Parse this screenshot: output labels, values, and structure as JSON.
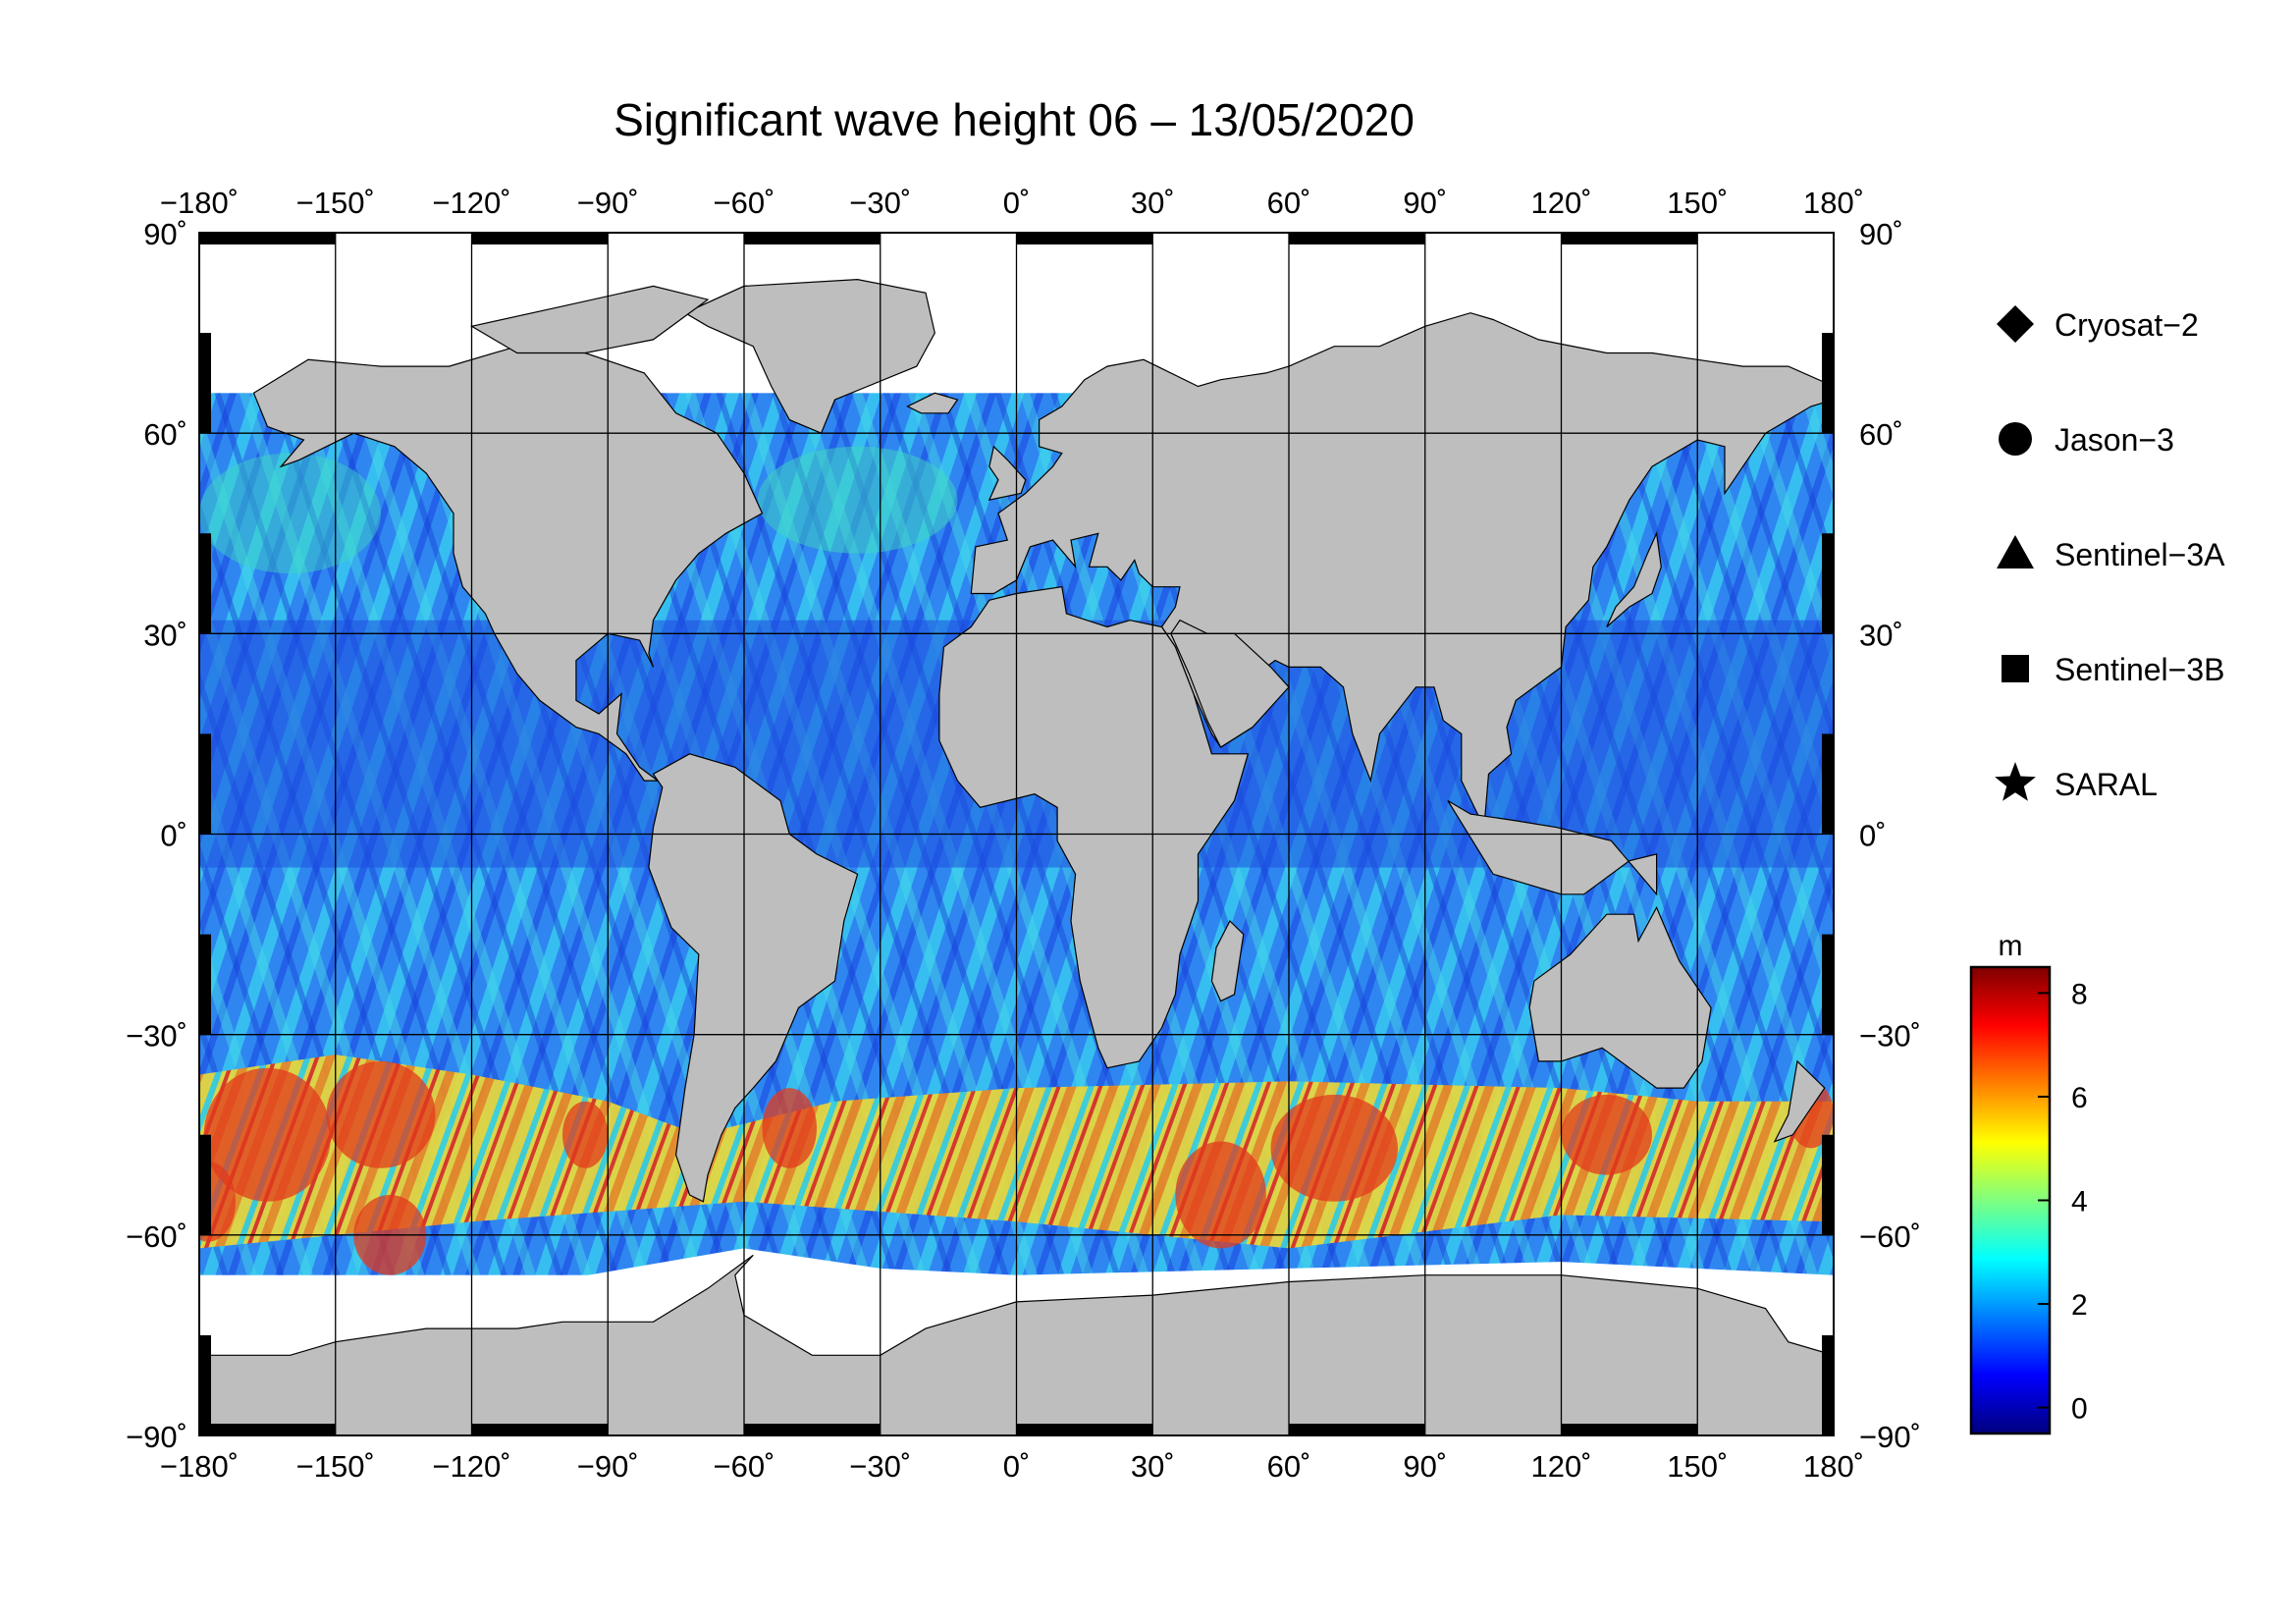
{
  "title": "Significant wave height 06 – 13/05/2020",
  "map": {
    "projection": "equirectangular",
    "lon_range": [
      -180,
      180
    ],
    "lat_range": [
      -90,
      90
    ],
    "gridlines": true,
    "lon_ticks": [
      {
        "value": -180,
        "label": "−180˚"
      },
      {
        "value": -150,
        "label": "−150˚"
      },
      {
        "value": -120,
        "label": "−120˚"
      },
      {
        "value": -90,
        "label": "−90˚"
      },
      {
        "value": -60,
        "label": "−60˚"
      },
      {
        "value": -30,
        "label": "−30˚"
      },
      {
        "value": 0,
        "label": "0˚"
      },
      {
        "value": 30,
        "label": "30˚"
      },
      {
        "value": 60,
        "label": "60˚"
      },
      {
        "value": 90,
        "label": "90˚"
      },
      {
        "value": 120,
        "label": "120˚"
      },
      {
        "value": 150,
        "label": "150˚"
      },
      {
        "value": 180,
        "label": "180˚"
      }
    ],
    "lat_ticks": [
      {
        "value": 90,
        "label": "90˚"
      },
      {
        "value": 60,
        "label": "60˚"
      },
      {
        "value": 30,
        "label": "30˚"
      },
      {
        "value": 0,
        "label": "0˚"
      },
      {
        "value": -30,
        "label": "−30˚"
      },
      {
        "value": -60,
        "label": "−60˚"
      },
      {
        "value": -90,
        "label": "−90˚"
      }
    ],
    "colors": {
      "land": "#bebebe",
      "ice": "#ffffff",
      "frame": "#000000"
    }
  },
  "legend": {
    "items": [
      {
        "label": "Cryosat−2",
        "marker": "diamond-icon"
      },
      {
        "label": "Jason−3",
        "marker": "circle-icon"
      },
      {
        "label": "Sentinel−3A",
        "marker": "triangle-icon"
      },
      {
        "label": "Sentinel−3B",
        "marker": "square-icon"
      },
      {
        "label": "SARAL",
        "marker": "star-icon"
      }
    ]
  },
  "colorbar": {
    "unit": "m",
    "min": -0.5,
    "max": 8.5,
    "ticks": [
      {
        "value": 0,
        "label": "0"
      },
      {
        "value": 2,
        "label": "2"
      },
      {
        "value": 4,
        "label": "4"
      },
      {
        "value": 6,
        "label": "6"
      },
      {
        "value": 8,
        "label": "8"
      }
    ],
    "stops": [
      "#00007f",
      "#0000ff",
      "#007fff",
      "#00ffff",
      "#7fff7f",
      "#ffff00",
      "#ff7f00",
      "#ff0000",
      "#7f0000"
    ]
  }
}
